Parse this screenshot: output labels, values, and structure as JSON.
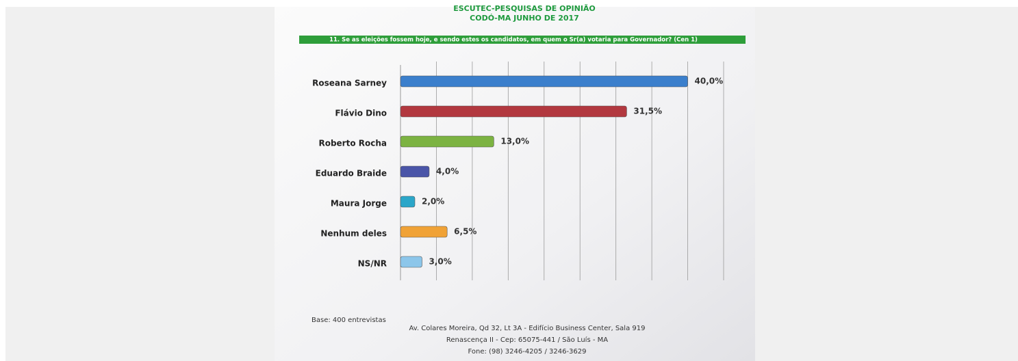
{
  "header": {
    "title": "ESCUTEC-PESQUISAS DE OPINIÃO",
    "subtitle": "CODÓ-MA JUNHO DE 2017"
  },
  "chart_data": {
    "type": "bar",
    "orientation": "horizontal",
    "title": "11. Se as eleições fossem hoje, e sendo estes os candidatos, em quem o Sr(a) votaria para Governador? (Cen 1)",
    "categories": [
      "Roseana Sarney",
      "Flávio Dino",
      "Roberto Rocha",
      "Eduardo Braide",
      "Maura Jorge",
      "Nenhum deles",
      "NS/NR"
    ],
    "values": [
      40,
      31.5,
      13,
      4,
      2,
      6.5,
      3
    ],
    "value_labels": [
      "40,0%",
      "31,5%",
      "13,0%",
      "4,0%",
      "2,0%",
      "6,5%",
      "3,0%"
    ],
    "colors": [
      "#3b7fcc",
      "#b2383f",
      "#7cb342",
      "#4a55a8",
      "#2ba6c9",
      "#f0a236",
      "#8cc6ea"
    ],
    "xlim": [
      0,
      45
    ],
    "xticks": [
      5,
      10,
      15,
      20,
      25,
      30,
      35,
      40,
      45
    ],
    "grid": true
  },
  "footer": {
    "base": "Base: 400 entrevistas",
    "address": [
      "Av. Colares Moreira, Qd 32, Lt 3A - Edifício Business Center, Sala 919",
      "Renascença II - Cep: 65075-441 / São Luís - MA",
      "Fone: (98) 3246-4205 / 3246-3629"
    ]
  }
}
